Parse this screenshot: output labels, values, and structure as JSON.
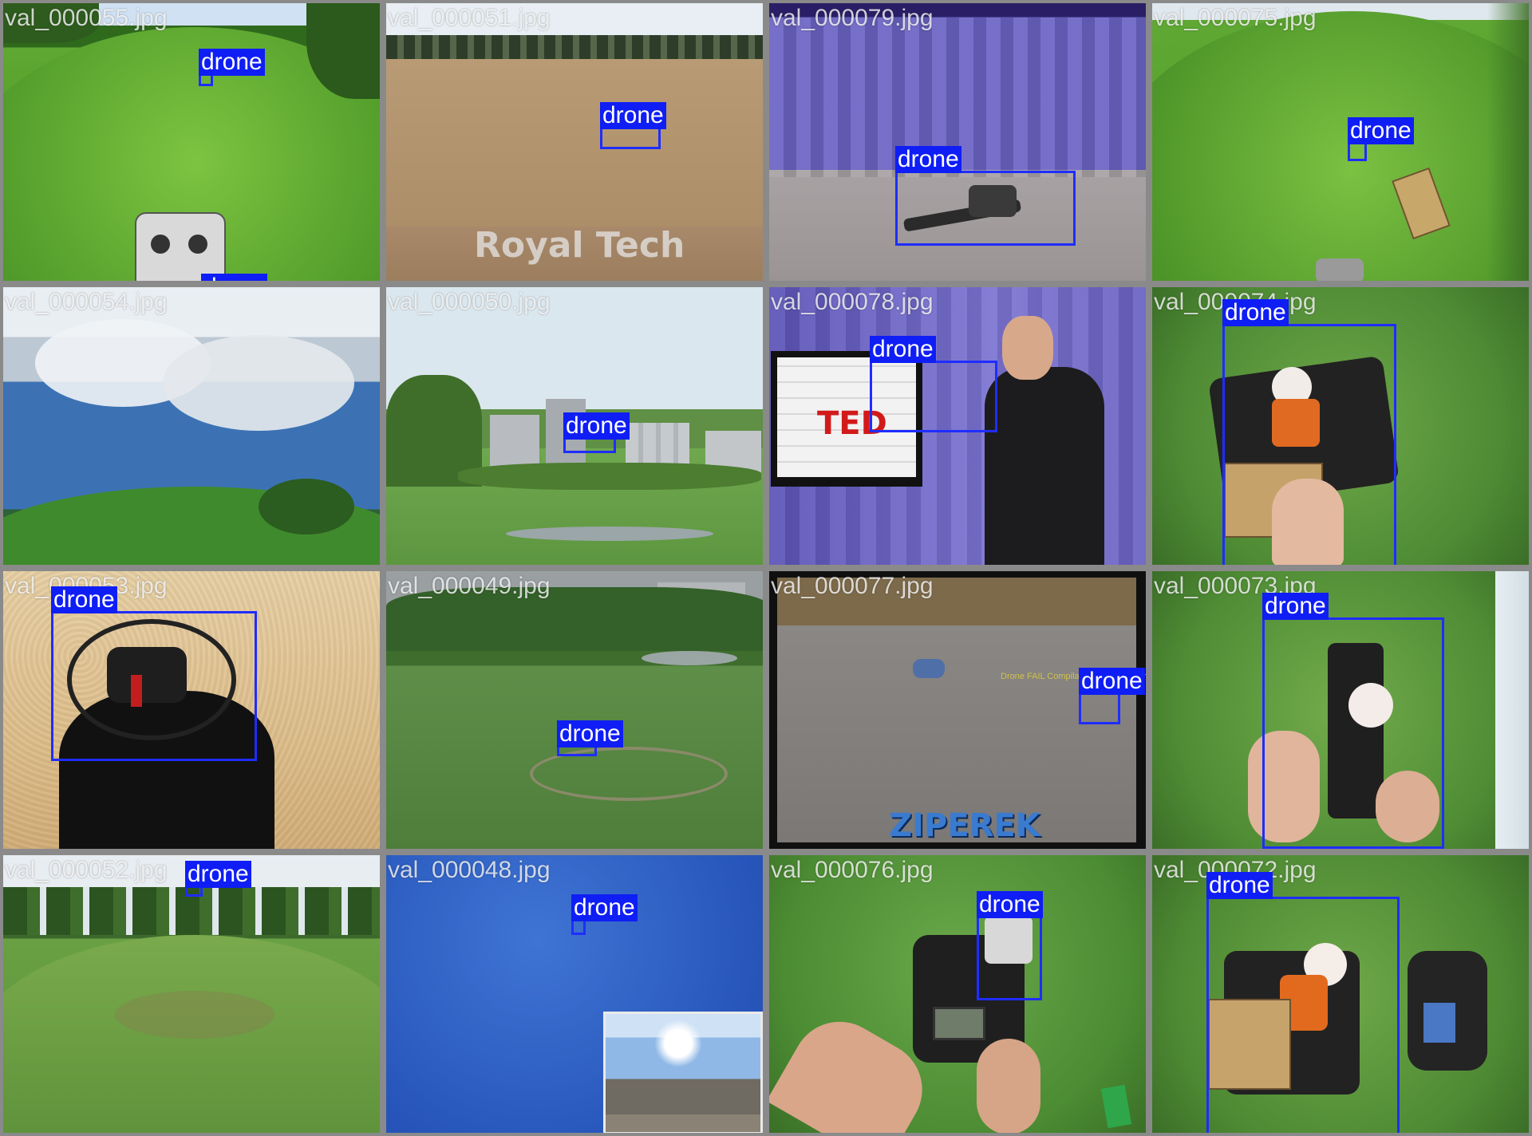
{
  "detection_label": "drone",
  "colors": {
    "box": "#1f2dff",
    "label_bg": "#0f1ef5",
    "label_text": "#ffffff",
    "tile_border": "#8a8a8a"
  },
  "tiles": [
    {
      "filename": "val_000055.jpg",
      "scene": "grass-fisheye"
    },
    {
      "filename": "val_000051.jpg",
      "scene": "dry-field",
      "watermark": "Royal Tech"
    },
    {
      "filename": "val_000079.jpg",
      "scene": "purple-stage"
    },
    {
      "filename": "val_000075.jpg",
      "scene": "grass-fisheye"
    },
    {
      "filename": "val_000054.jpg",
      "scene": "sky-fisheye"
    },
    {
      "filename": "val_000050.jpg",
      "scene": "city-field"
    },
    {
      "filename": "val_000078.jpg",
      "scene": "ted-stage",
      "sign": "TED"
    },
    {
      "filename": "val_000074.jpg",
      "scene": "grass-closeup"
    },
    {
      "filename": "val_000053.jpg",
      "scene": "sand-shadow"
    },
    {
      "filename": "val_000049.jpg",
      "scene": "green-field"
    },
    {
      "filename": "val_000077.jpg",
      "scene": "gray-ground",
      "caption": "Drone FAIL Compilation #1 Fail Crashes",
      "logo": "ZIPEREK"
    },
    {
      "filename": "val_000073.jpg",
      "scene": "grass-closeup"
    },
    {
      "filename": "val_000052.jpg",
      "scene": "park-hill"
    },
    {
      "filename": "val_000048.jpg",
      "scene": "blue-sky"
    },
    {
      "filename": "val_000076.jpg",
      "scene": "grass-controller"
    },
    {
      "filename": "val_000072.jpg",
      "scene": "grass-closeup"
    }
  ]
}
